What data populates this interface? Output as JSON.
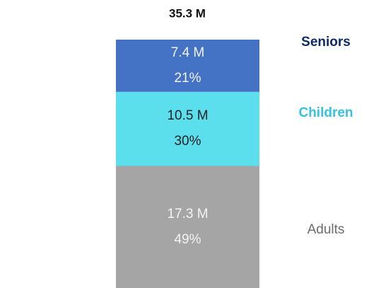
{
  "chart_data": {
    "type": "stacked-bar",
    "title": "35.3 M",
    "series": [
      {
        "name": "Adults",
        "color": "#a5a5a5",
        "label_color": "#6b6b6b",
        "text_color": "#f4f4f4",
        "values": [
          17.3
        ],
        "value_labels": [
          "17.3 M"
        ],
        "percents": [
          49
        ],
        "percent_labels": [
          "49%"
        ]
      },
      {
        "name": "Children",
        "color": "#5cdfec",
        "label_color": "#36c3dd",
        "text_color": "#222222",
        "values": [
          10.5
        ],
        "value_labels": [
          "10.5 M"
        ],
        "percents": [
          30
        ],
        "percent_labels": [
          "30%"
        ]
      },
      {
        "name": "Seniors",
        "color": "#4472c4",
        "label_color": "#0d2a6b",
        "text_color": "#f4f4f4",
        "values": [
          7.4
        ],
        "value_labels": [
          "7.4 M"
        ],
        "percents": [
          21
        ],
        "percent_labels": [
          "21%"
        ]
      }
    ]
  }
}
